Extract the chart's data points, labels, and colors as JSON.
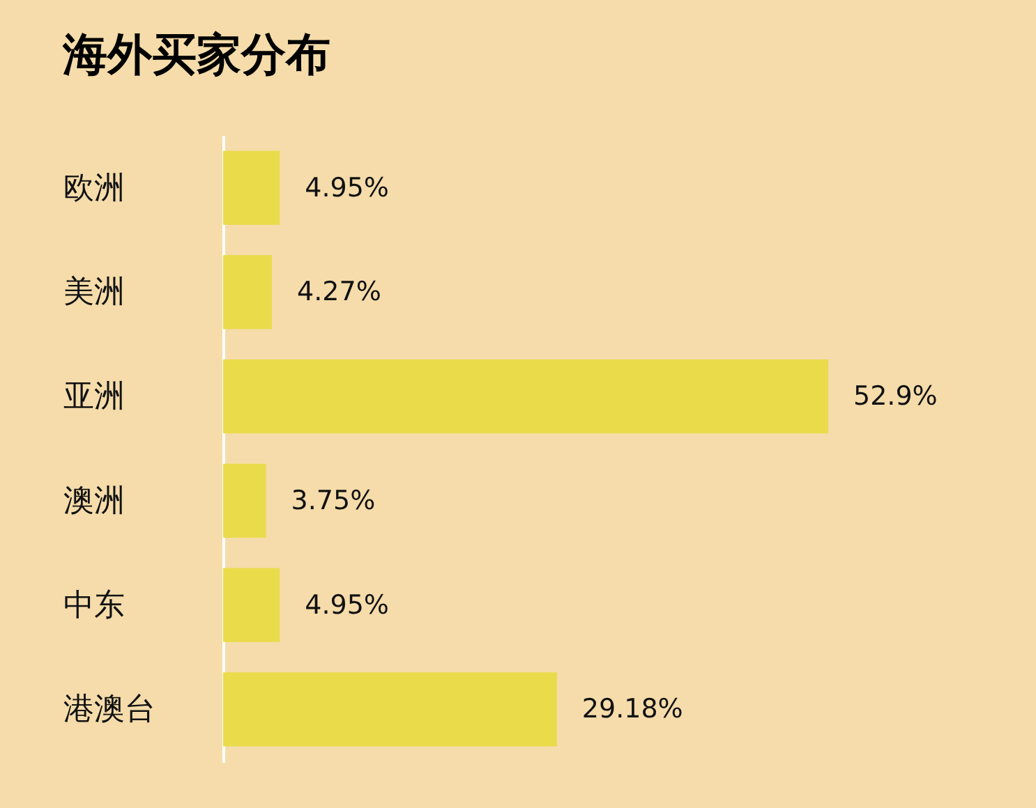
{
  "chart_data": {
    "type": "bar",
    "orientation": "horizontal",
    "title": "海外买家分布",
    "categories": [
      "欧洲",
      "美洲",
      "亚洲",
      "澳洲",
      "中东",
      "港澳台"
    ],
    "values": [
      4.95,
      4.27,
      52.9,
      3.75,
      4.95,
      29.18
    ],
    "value_labels": [
      "4.95%",
      "4.27%",
      "52.9%",
      "3.75%",
      "4.95%",
      "29.18%"
    ],
    "color": "#eadb4b"
  }
}
